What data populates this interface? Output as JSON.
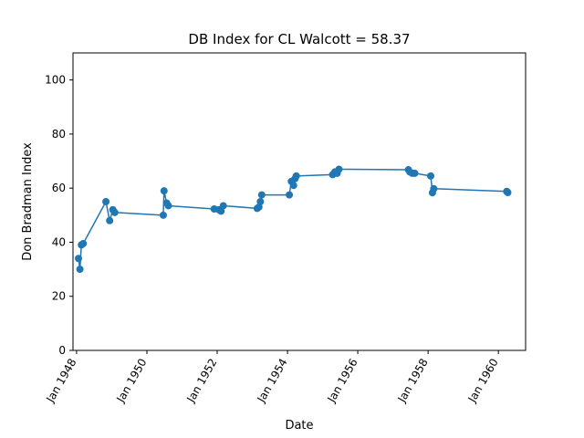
{
  "chart_data": {
    "type": "line",
    "title": "DB Index for CL Walcott = 58.37",
    "xlabel": "Date",
    "ylabel": "Don Bradman Index",
    "ylim": [
      0,
      110
    ],
    "xlim": [
      "1947-11-25",
      "1960-10-10"
    ],
    "yticks": [
      0,
      20,
      40,
      60,
      80,
      100
    ],
    "xticks": [
      {
        "date": "1948-01-01",
        "label": "Jan 1948"
      },
      {
        "date": "1950-01-01",
        "label": "Jan 1950"
      },
      {
        "date": "1952-01-01",
        "label": "Jan 1952"
      },
      {
        "date": "1954-01-01",
        "label": "Jan 1954"
      },
      {
        "date": "1956-01-01",
        "label": "Jan 1956"
      },
      {
        "date": "1958-01-01",
        "label": "Jan 1958"
      },
      {
        "date": "1960-01-01",
        "label": "Jan 1960"
      }
    ],
    "grid": false,
    "legend": "none",
    "color": "#1f77b4",
    "series": [
      {
        "x": [
          "1948-01-21",
          "1948-02-05",
          "1948-02-20",
          "1948-03-10",
          "1948-11-01",
          "1948-12-10",
          "1949-01-12",
          "1949-02-01",
          "1950-06-20",
          "1950-06-28",
          "1950-07-25",
          "1950-08-12",
          "1951-12-01",
          "1952-01-20",
          "1952-02-10",
          "1952-03-05",
          "1953-02-20",
          "1953-03-10",
          "1953-03-25",
          "1953-04-08",
          "1954-01-20",
          "1954-02-10",
          "1954-03-05",
          "1954-03-20",
          "1954-04-02",
          "1955-04-15",
          "1955-05-08",
          "1955-06-01",
          "1955-06-20",
          "1957-06-10",
          "1957-06-25",
          "1957-07-20",
          "1957-08-15",
          "1958-01-28",
          "1958-02-15",
          "1958-03-01",
          "1960-03-28",
          "1960-04-08"
        ],
        "y": [
          34,
          30,
          39,
          39.5,
          55,
          48,
          52,
          51,
          50,
          59,
          54.5,
          53.5,
          52.3,
          52,
          51.5,
          53.5,
          52.5,
          53,
          55,
          57.5,
          57.5,
          62.5,
          61,
          63.5,
          64.5,
          65,
          66,
          65.5,
          67,
          66.8,
          66,
          65.5,
          65.5,
          64.5,
          58.3,
          59.8,
          58.8,
          58.37
        ]
      }
    ]
  }
}
